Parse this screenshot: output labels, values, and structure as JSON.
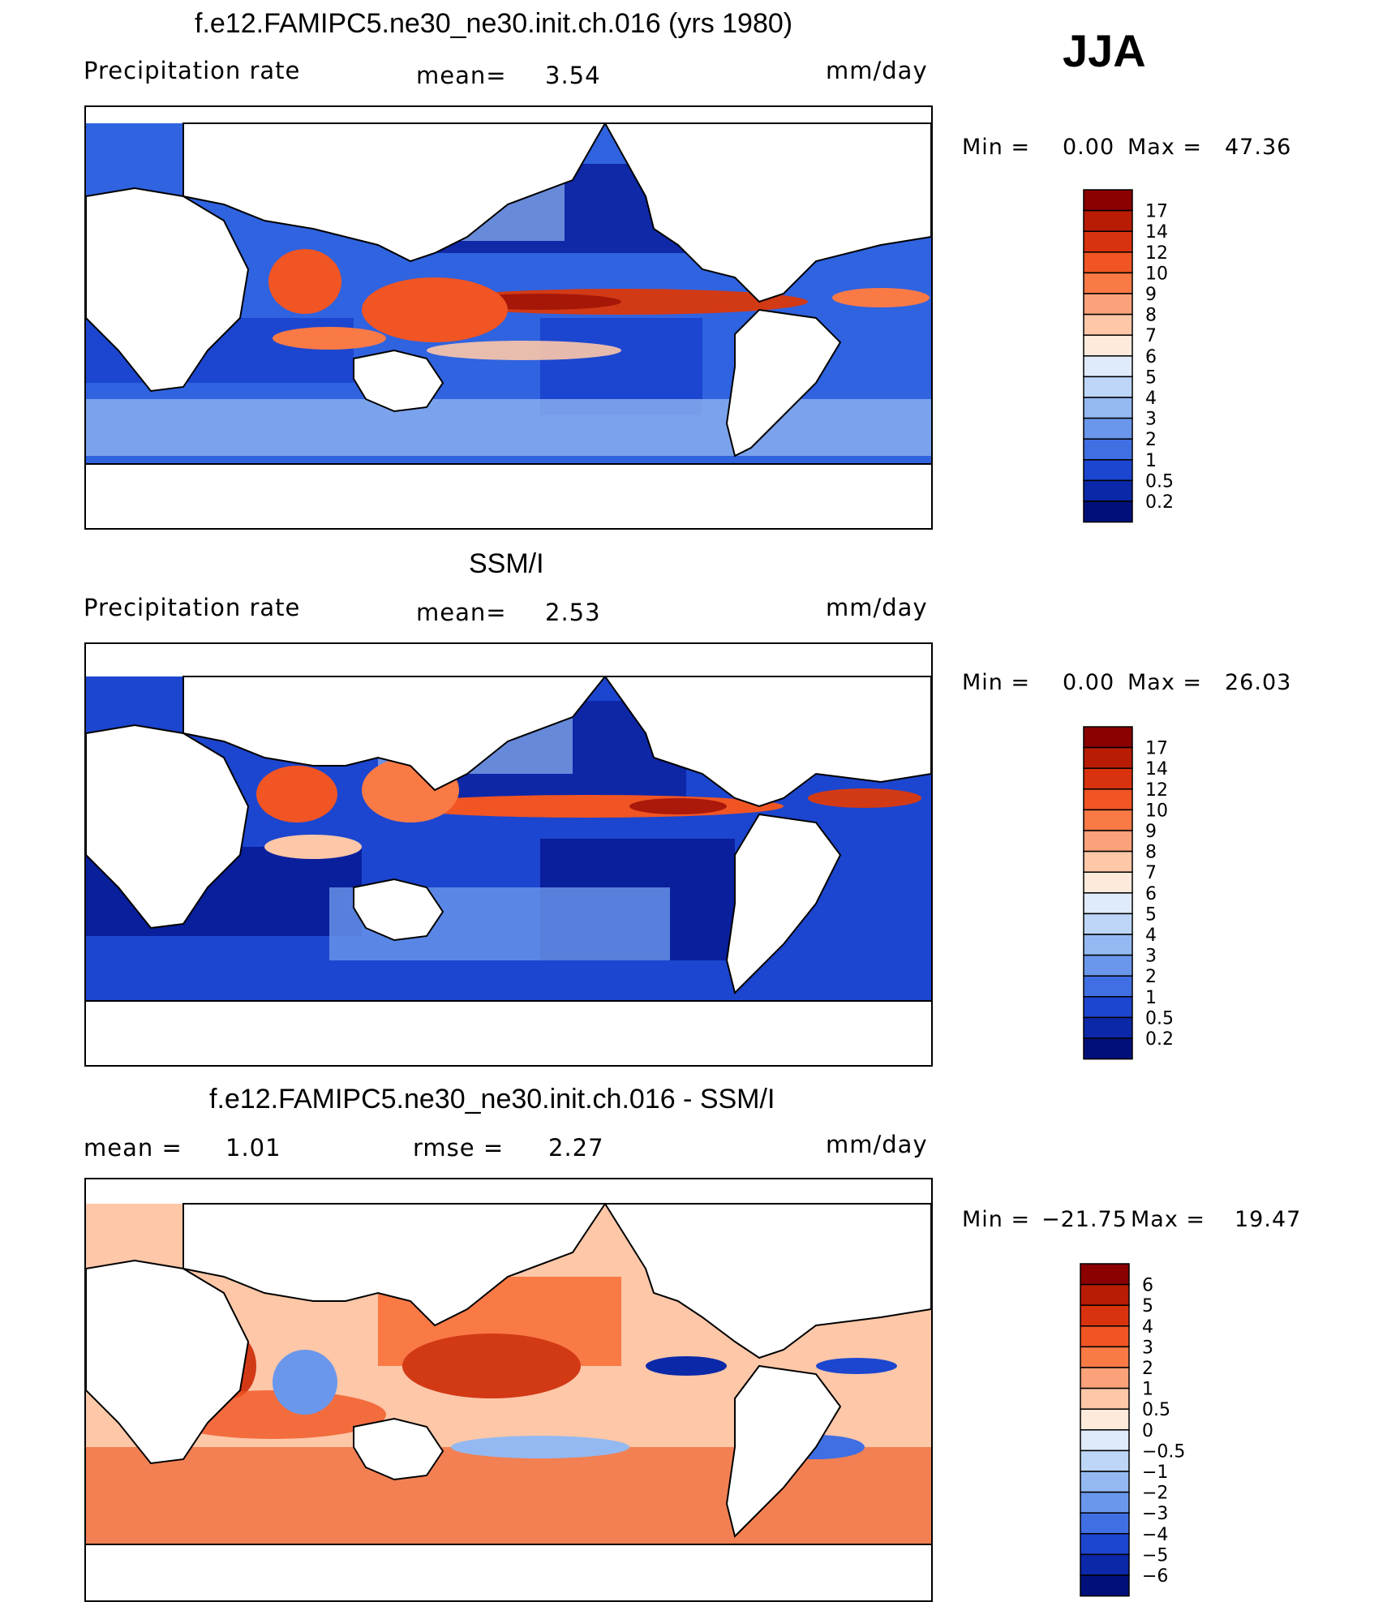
{
  "season": "JJA",
  "panels": [
    {
      "id": "model",
      "title": "f.e12.FAMIPC5.ne30_ne30.init.ch.016 (yrs 1980)",
      "left_label": "Precipitation rate",
      "stat1_label": "mean=",
      "stat1_value": "3.54",
      "stat2_label": "",
      "stat2_value": "",
      "units": "mm/day",
      "min_label": "Min =",
      "min_value": "0.00",
      "max_label": "Max =",
      "max_value": "47.36",
      "scale": "sequential"
    },
    {
      "id": "obs",
      "title": "SSM/I",
      "left_label": "Precipitation rate",
      "stat1_label": "mean=",
      "stat1_value": "2.53",
      "stat2_label": "",
      "stat2_value": "",
      "units": "mm/day",
      "min_label": "Min =",
      "min_value": "0.00",
      "max_label": "Max =",
      "max_value": "26.03",
      "scale": "sequential"
    },
    {
      "id": "diff",
      "title": "f.e12.FAMIPC5.ne30_ne30.init.ch.016 - SSM/I",
      "left_label": "mean =",
      "stat1_label": "",
      "stat1_value": "1.01",
      "stat2_label": "rmse =",
      "stat2_value": "2.27",
      "units": "mm/day",
      "min_label": "Min =",
      "min_value": "−21.75",
      "max_label": "Max =",
      "max_value": "19.47",
      "scale": "diverging"
    }
  ],
  "colorbars": {
    "sequential": {
      "labels": [
        "17",
        "14",
        "12",
        "10",
        "9",
        "8",
        "7",
        "6",
        "5",
        "4",
        "3",
        "2",
        "1",
        "0.5",
        "0.2"
      ],
      "colors": [
        "#8b0000",
        "#b81c05",
        "#d9320f",
        "#f05523",
        "#fa7a46",
        "#fca27a",
        "#fdc7a8",
        "#feeadb",
        "#dfeafb",
        "#bdd6f7",
        "#94b9f2",
        "#6a97eb",
        "#3f6fe3",
        "#1c46cf",
        "#0b28a8",
        "#00107a"
      ]
    },
    "diverging": {
      "labels": [
        "6",
        "5",
        "4",
        "3",
        "2",
        "1",
        "0.5",
        "0",
        "−0.5",
        "−1",
        "−2",
        "−3",
        "−4",
        "−5",
        "−6"
      ],
      "colors": [
        "#8b0000",
        "#b81c05",
        "#d9320f",
        "#f05523",
        "#fa7a46",
        "#fca27a",
        "#fdc7a8",
        "#feeadb",
        "#dfeafb",
        "#bdd6f7",
        "#94b9f2",
        "#6a97eb",
        "#3f6fe3",
        "#1c46cf",
        "#0b28a8",
        "#00107a"
      ]
    }
  },
  "colors": {
    "ocean_deep_blue": "#0a1f9c",
    "ocean_mid_blue": "#2f63e0",
    "ocean_light_blue": "#8fb3f0",
    "rain_band_red": "#d23a16",
    "diff_warm": "#f28052",
    "land": "#ffffff"
  }
}
